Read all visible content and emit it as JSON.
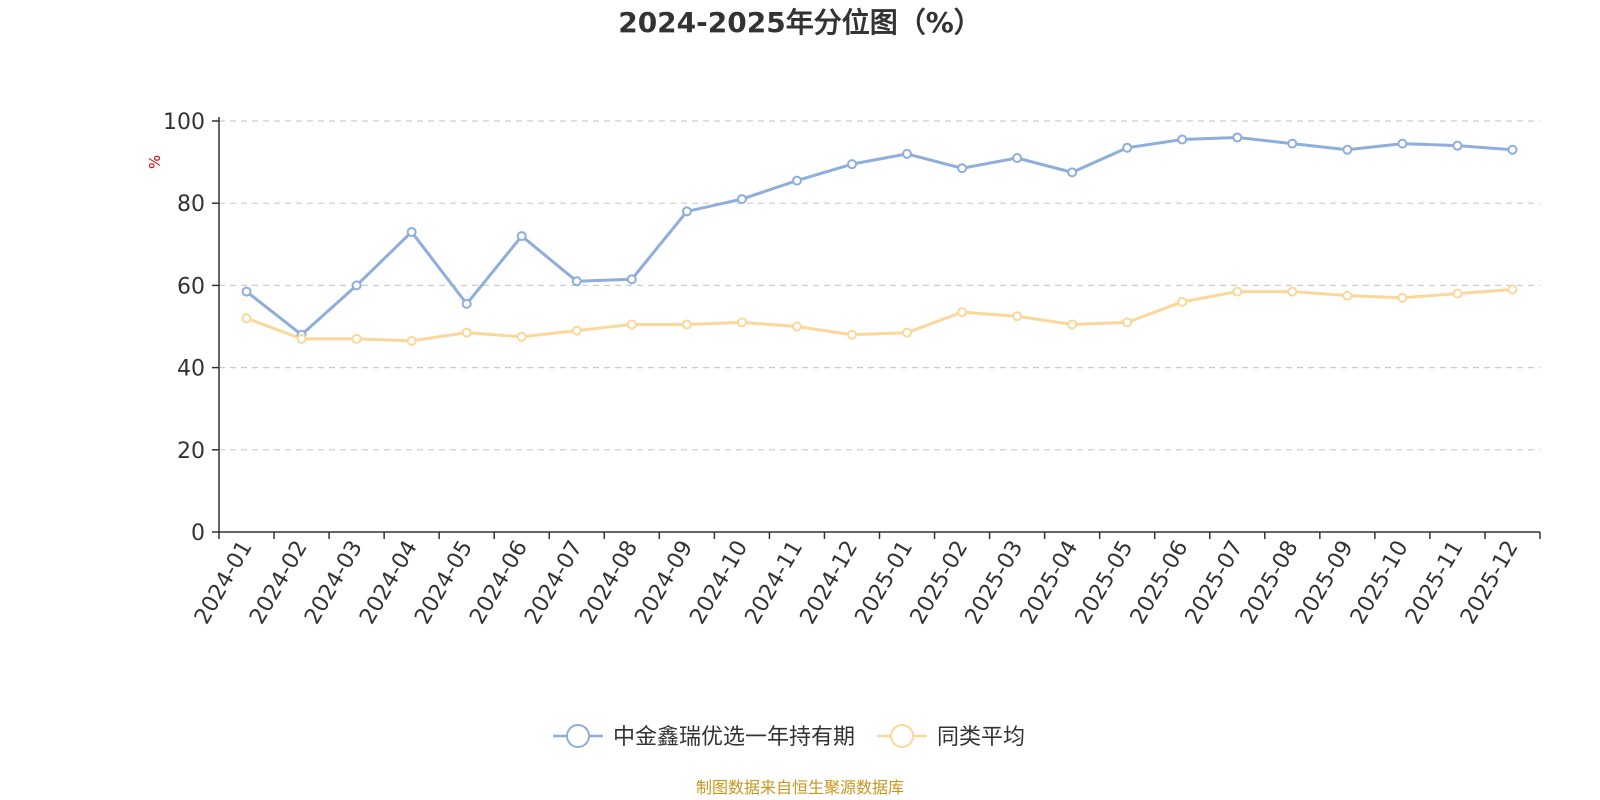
{
  "chart_data": {
    "type": "line",
    "title": "2024-2025年分位图（%）",
    "ylabel": "%",
    "ylim": [
      0,
      100
    ],
    "yticks": [
      "0",
      "20",
      "40",
      "60",
      "80",
      "100"
    ],
    "categories": [
      "2024-01",
      "2024-02",
      "2024-03",
      "2024-04",
      "2024-05",
      "2024-06",
      "2024-07",
      "2024-08",
      "2024-09",
      "2024-10",
      "2024-11",
      "2024-12",
      "2025-01",
      "2025-02",
      "2025-03",
      "2025-04",
      "2025-05",
      "2025-06",
      "2025-07",
      "2025-08",
      "2025-09",
      "2025-10",
      "2025-11",
      "2025-12"
    ],
    "series": [
      {
        "name": "中金鑫瑞优选一年持有期",
        "color": "#8eaedb",
        "values": [
          58.5,
          48,
          60,
          73,
          55.5,
          72,
          61,
          61.5,
          78,
          81,
          85.5,
          89.5,
          92,
          88.5,
          91,
          87.5,
          93.5,
          95.5,
          96,
          94.5,
          93,
          94.5,
          94,
          93
        ]
      },
      {
        "name": "同类平均",
        "color": "#fbd89a",
        "values": [
          52,
          47,
          47,
          46.5,
          48.5,
          47.5,
          49,
          50.5,
          50.5,
          51,
          50,
          48,
          48.5,
          53.5,
          52.5,
          50.5,
          51,
          56,
          58.5,
          58.5,
          57.5,
          57,
          58,
          59
        ]
      }
    ],
    "grid": true,
    "legend_position": "bottom",
    "source": "制图数据来自恒生聚源数据库"
  }
}
